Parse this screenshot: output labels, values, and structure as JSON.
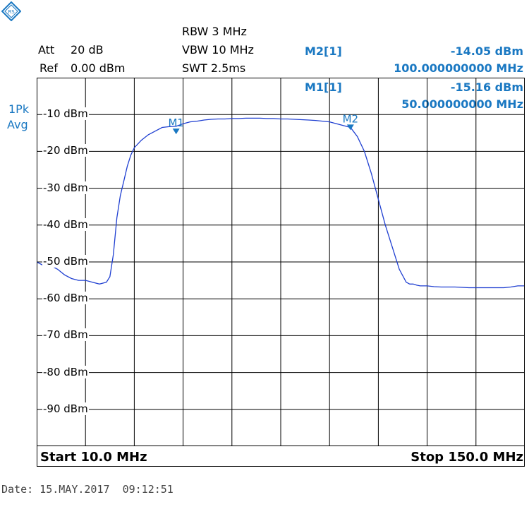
{
  "header": {
    "att_label": "Att",
    "att_value": "20 dB",
    "ref_label": "Ref",
    "ref_value": "0.00 dBm",
    "rbw": "RBW 3 MHz",
    "vbw": "VBW 10 MHz",
    "swt": "SWT 2.5ms"
  },
  "markers": {
    "m2_label": "M2[1]",
    "m2_level": "-14.05 dBm",
    "m2_freq": "100.000000000 MHz",
    "m1_label": "M1[1]",
    "m1_level": "-15.16 dBm",
    "m1_freq": "50.000000000 MHz"
  },
  "trace_mode": {
    "detector": "1Pk",
    "mode": "Avg"
  },
  "footer": {
    "start": "Start 10.0 MHz",
    "stop": "Stop 150.0 MHz",
    "date": "Date: 15.MAY.2017  09:12:51"
  },
  "colors": {
    "trace": "#1f3fd1",
    "marker": "#1a78c2",
    "grid": "#000000"
  },
  "chart_data": {
    "type": "line",
    "title": "",
    "xlabel": "",
    "ylabel": "",
    "xlim": [
      10,
      150
    ],
    "ylim": [
      -100,
      0
    ],
    "x_unit": "MHz",
    "y_tick_values": [
      -10,
      -20,
      -30,
      -40,
      -50,
      -60,
      -70,
      -80,
      -90
    ],
    "y_tick_labels": [
      "-10 dBm",
      "-20 dBm",
      "-30 dBm",
      "-40 dBm",
      "-50 dBm",
      "-60 dBm",
      "-70 dBm",
      "-80 dBm",
      "-90 dBm"
    ],
    "grid": true,
    "series": [
      {
        "x": [
          10,
          12,
          14,
          16,
          18,
          20,
          22,
          24,
          26,
          28,
          30,
          31,
          32,
          33,
          34,
          35,
          36,
          37,
          38,
          40,
          42,
          44,
          46,
          48,
          50,
          52,
          54,
          56,
          58,
          60,
          62,
          64,
          66,
          68,
          70,
          72,
          74,
          76,
          78,
          80,
          82,
          84,
          86,
          88,
          90,
          92,
          94,
          96,
          98,
          100,
          102,
          104,
          106,
          108,
          110,
          112,
          114,
          116,
          117,
          118,
          119,
          120,
          121,
          122,
          124,
          126,
          128,
          130,
          132,
          134,
          136,
          138,
          140,
          142,
          144,
          146,
          148,
          150
        ],
        "y": [
          -50.0,
          -51.0,
          -51.0,
          -52.0,
          -53.5,
          -54.5,
          -55.0,
          -55.0,
          -55.5,
          -56.0,
          -55.5,
          -54.0,
          -48.0,
          -38.0,
          -32.0,
          -28.0,
          -24.0,
          -21.0,
          -19.0,
          -17.0,
          -15.5,
          -14.5,
          -13.5,
          -13.3,
          -13.2,
          -12.5,
          -12.0,
          -11.8,
          -11.5,
          -11.3,
          -11.2,
          -11.2,
          -11.1,
          -11.1,
          -11.0,
          -11.0,
          -11.0,
          -11.1,
          -11.1,
          -11.2,
          -11.2,
          -11.3,
          -11.4,
          -11.5,
          -11.6,
          -11.8,
          -12.0,
          -12.5,
          -13.0,
          -13.5,
          -16.0,
          -20.0,
          -26.0,
          -33.0,
          -40.0,
          -46.0,
          -52.0,
          -55.5,
          -56.0,
          -56.0,
          -56.3,
          -56.5,
          -56.5,
          -56.5,
          -56.7,
          -56.8,
          -56.8,
          -56.8,
          -56.9,
          -57.0,
          -57.0,
          -57.0,
          -57.0,
          -57.0,
          -57.0,
          -56.8,
          -56.5,
          -56.5
        ]
      }
    ],
    "markers": [
      {
        "name": "M1",
        "x": 50,
        "y": -15.16
      },
      {
        "name": "M2",
        "x": 100,
        "y": -14.05
      }
    ]
  }
}
